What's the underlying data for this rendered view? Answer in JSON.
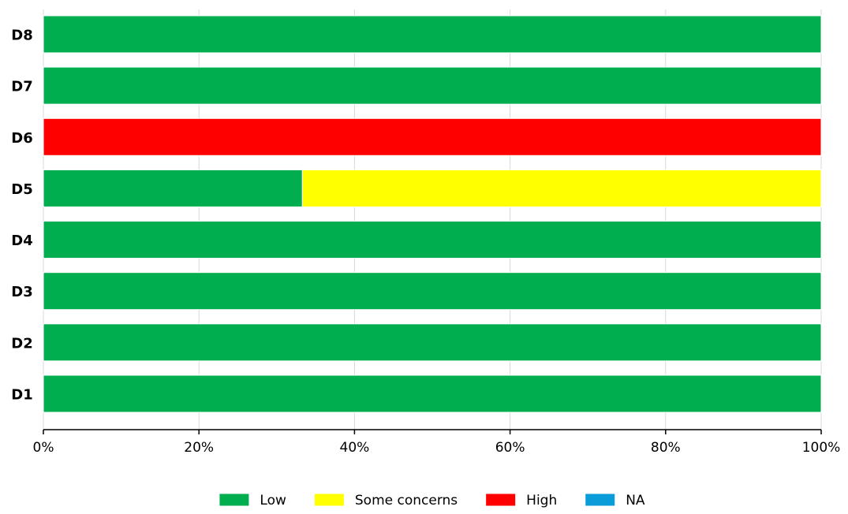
{
  "chart_data": {
    "type": "bar",
    "orientation": "horizontal",
    "stacked": true,
    "categories": [
      "D8",
      "D7",
      "D6",
      "D5",
      "D4",
      "D3",
      "D2",
      "D1"
    ],
    "series": [
      {
        "name": "Low",
        "color": "#00AE4F",
        "values": [
          100,
          100,
          0,
          33.3,
          100,
          100,
          100,
          100
        ]
      },
      {
        "name": "Some concerns",
        "color": "#FFFF00",
        "values": [
          0,
          0,
          0,
          66.7,
          0,
          0,
          0,
          0
        ]
      },
      {
        "name": "High",
        "color": "#FF0000",
        "values": [
          0,
          0,
          100,
          0,
          0,
          0,
          0,
          0
        ]
      },
      {
        "name": "NA",
        "color": "#0A9CD8",
        "values": [
          0,
          0,
          0,
          0,
          0,
          0,
          0,
          0
        ]
      }
    ],
    "xlim": [
      0,
      100
    ],
    "xticks": [
      "0%",
      "20%",
      "40%",
      "60%",
      "80%",
      "100%"
    ],
    "grid": true,
    "legend_position": "bottom"
  }
}
